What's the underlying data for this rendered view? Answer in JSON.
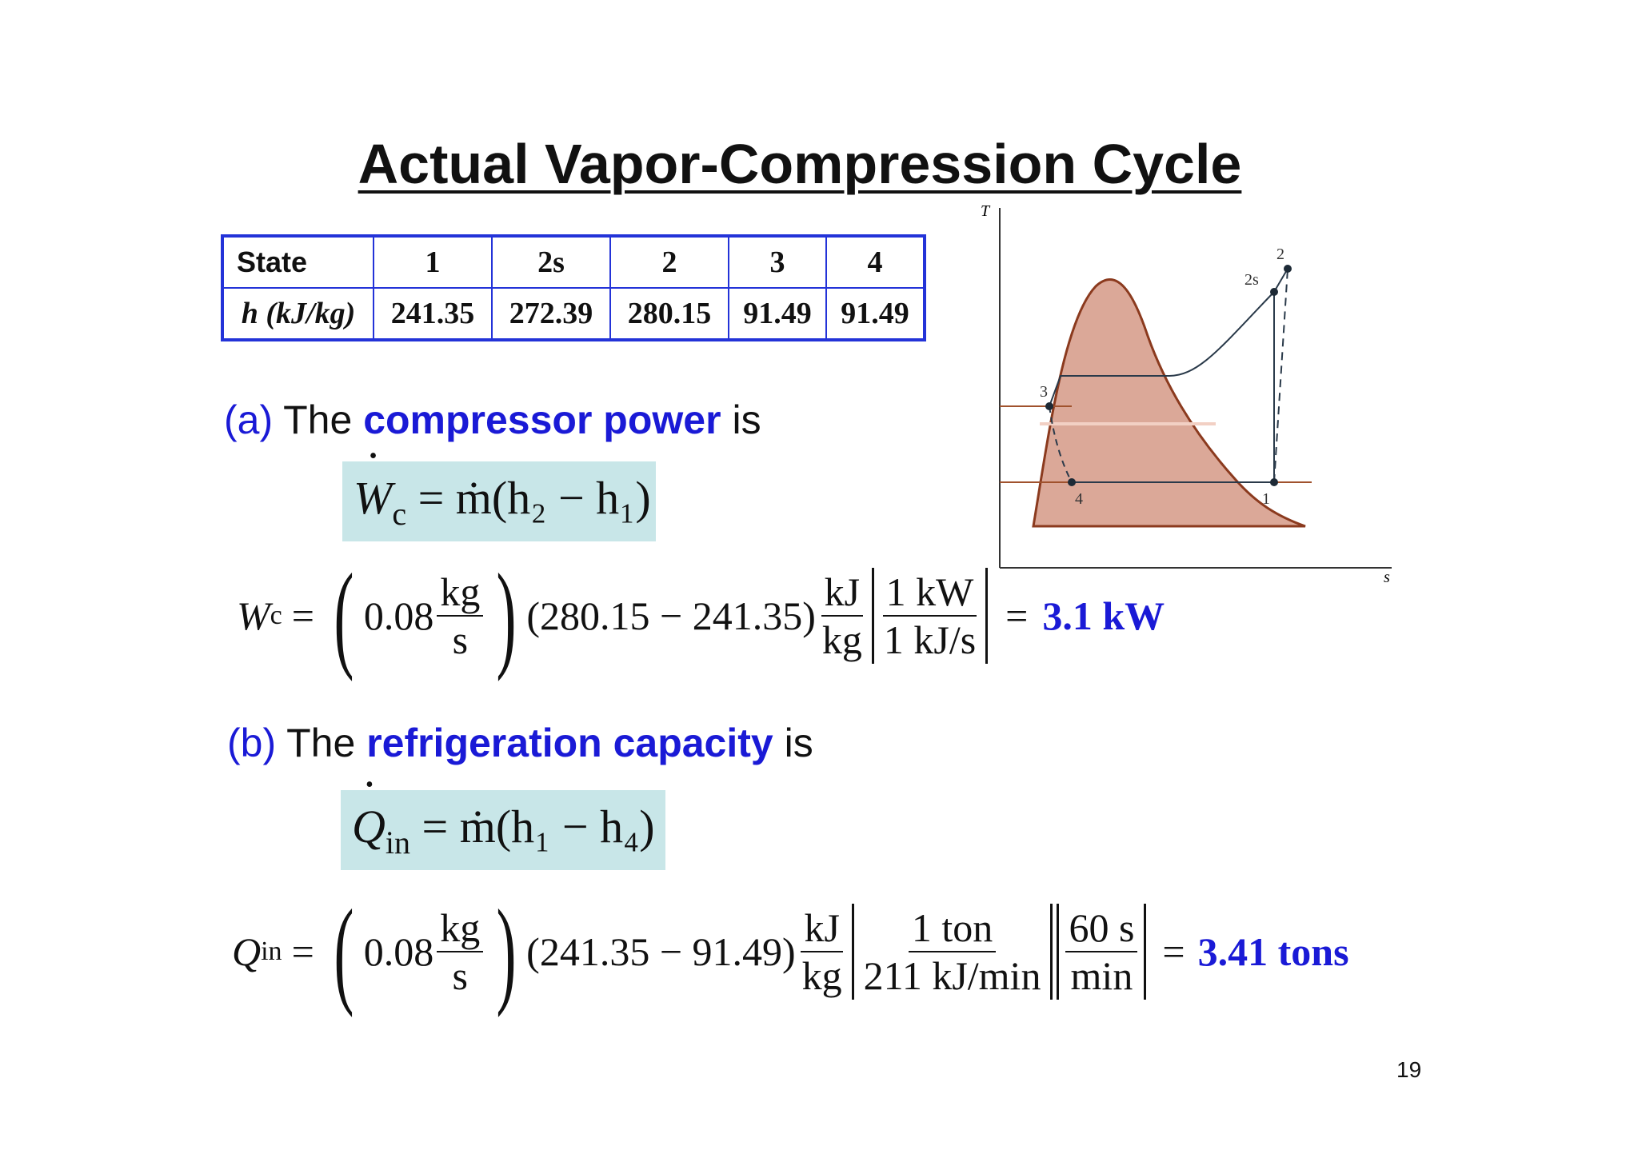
{
  "title": "Actual Vapor-Compression Cycle",
  "table": {
    "header": [
      "State",
      "1",
      "2s",
      "2",
      "3",
      "4"
    ],
    "row_label": "h (kJ/kg)",
    "row_label_symbol": "h",
    "row_label_unit": "(kJ/kg)",
    "values": [
      "241.35",
      "272.39",
      "280.15",
      "91.49",
      "91.49"
    ]
  },
  "part_a": {
    "label": "(a)",
    "pre": "The",
    "emphasis": "compressor power",
    "post": "is",
    "equation": {
      "lhs": "W",
      "lhs_sub": "c",
      "rhs": "= ṁ(h₂ − h₁)"
    },
    "calc": {
      "lhs": "W",
      "lhs_sub": "c",
      "eq": "=",
      "flow": "0.08",
      "flow_unit_num": "kg",
      "flow_unit_den": "s",
      "diff": "(280.15 − 241.35)",
      "unit_num": "kJ",
      "unit_den": "kg",
      "conv_num": "1 kW",
      "conv_den": "1 kJ/s",
      "result_eq": "=",
      "result": "3.1 kW"
    }
  },
  "part_b": {
    "label": "(b)",
    "pre": "The",
    "emphasis": "refrigeration capacity",
    "post": "is",
    "equation": {
      "lhs": "Q",
      "lhs_sub": "in",
      "rhs": "= ṁ(h₁ − h₄)"
    },
    "calc": {
      "lhs": "Q",
      "lhs_sub": "in",
      "eq": "=",
      "flow": "0.08",
      "flow_unit_num": "kg",
      "flow_unit_den": "s",
      "diff": "(241.35 − 91.49)",
      "unit_num": "kJ",
      "unit_den": "kg",
      "conv1_num": "1 ton",
      "conv1_den": "211 kJ/min",
      "conv2_num": "60 s",
      "conv2_den": "min",
      "result_eq": "=",
      "result": "3.41 tons"
    }
  },
  "diagram": {
    "axis_y": "T",
    "axis_x": "s",
    "points": [
      "1",
      "2",
      "2s",
      "3",
      "4"
    ],
    "colors": {
      "dome_fill": "#dba898",
      "dome_stroke": "#8b3a1e",
      "cycle": "#2a3a4a",
      "isobar": "#a0522d"
    }
  },
  "page_number": "19"
}
